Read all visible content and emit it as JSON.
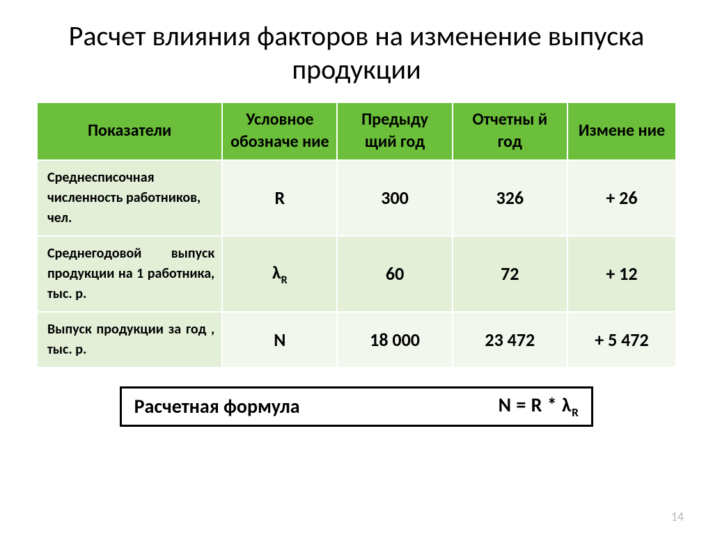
{
  "title": "Расчет влияния факторов на изменение выпуска продукции",
  "headers": [
    "Показатели",
    "Условное обозначе ние",
    "Предыду щий год",
    "Отчетны й год",
    "Измене ние"
  ],
  "rows": [
    {
      "label": "Среднесписочная численность работников, чел.",
      "sym_html": "R",
      "prev": "300",
      "cur": "326",
      "delta": "+ 26"
    },
    {
      "label": "Среднегодовой выпуск продукции на 1 работника, тыс. р.",
      "sym_html": "λ<span class=\"sub\">R</span>",
      "prev": "60",
      "cur": "72",
      "delta": "+ 12"
    },
    {
      "label": "Выпуск продукции за год , тыс. р.",
      "sym_html": "N",
      "prev": "18 000",
      "cur": "23 472",
      "delta": "+ 5 472"
    }
  ],
  "formula": {
    "label": "Расчетная формула",
    "expr_html": "N = R * λ<span class=\"sub\">R</span>"
  },
  "page_number": "14",
  "style": {
    "header_bg": "#6bbf3a",
    "row_label_bg": "#e3efd7",
    "row_alt1_bg": "#f2f7ed",
    "row_alt2_bg": "#e3efd7",
    "header_fontsize": 24,
    "cell_fontsize": 26,
    "label_fontsize": 20,
    "title_fontsize": 40,
    "formula_fontsize": 28,
    "border_color": "#ffffff",
    "title_color": "#000000",
    "text_color": "#000000",
    "pagenum_color": "#b9b9b9",
    "col_widths_pct": [
      29,
      18,
      18,
      18,
      17
    ]
  }
}
